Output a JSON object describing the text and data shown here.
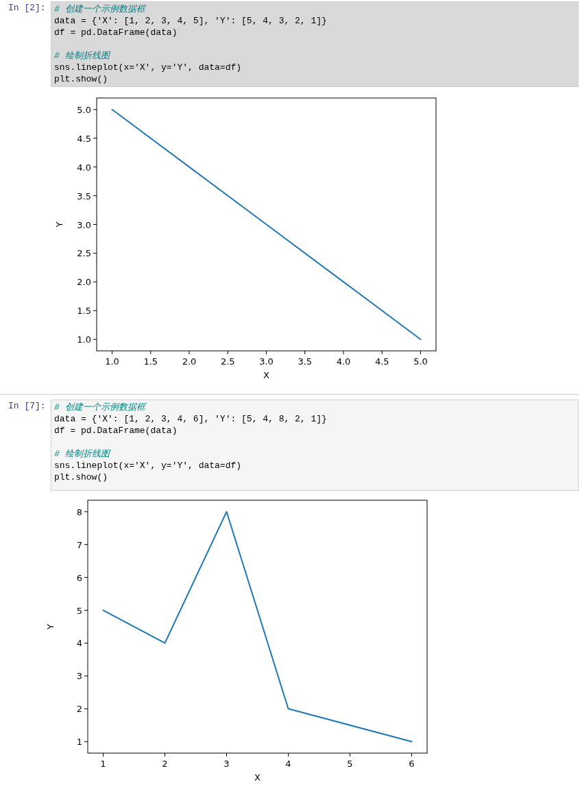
{
  "chart_data": [
    {
      "type": "line",
      "xlabel": "X",
      "ylabel": "Y",
      "color": "#1f77b4",
      "annotations": [
        "In [2]:",
        "# 创建一个示例数据框",
        "data = {'X': [1, 2, 3, 4, 5], 'Y': [5, 4, 3, 2, 1]}",
        "df = pd.DataFrame(data)",
        "# 绘制折线图",
        "sns.lineplot(x='X', y='Y', data=df)",
        "plt.show()"
      ],
      "x": [
        1,
        2,
        3,
        4,
        5
      ],
      "values": [
        5,
        4,
        3,
        2,
        1
      ],
      "xlim": [
        0.8,
        5.2
      ],
      "ylim": [
        0.8,
        5.2
      ],
      "xticks": [
        {
          "value": 1,
          "label": "1.0"
        },
        {
          "value": 1.5,
          "label": "1.5"
        },
        {
          "value": 2,
          "label": "2.0"
        },
        {
          "value": 2.5,
          "label": "2.5"
        },
        {
          "value": 3,
          "label": "3.0"
        },
        {
          "value": 3.5,
          "label": "3.5"
        },
        {
          "value": 4,
          "label": "4.0"
        },
        {
          "value": 4.5,
          "label": "4.5"
        },
        {
          "value": 5,
          "label": "5.0"
        }
      ],
      "yticks": [
        {
          "value": 1,
          "label": "1.0"
        },
        {
          "value": 1.5,
          "label": "1.5"
        },
        {
          "value": 2,
          "label": "2.0"
        },
        {
          "value": 2.5,
          "label": "2.5"
        },
        {
          "value": 3,
          "label": "3.0"
        },
        {
          "value": 3.5,
          "label": "3.5"
        },
        {
          "value": 4,
          "label": "4.0"
        },
        {
          "value": 4.5,
          "label": "4.5"
        },
        {
          "value": 5,
          "label": "5.0"
        }
      ],
      "grid": false
    },
    {
      "type": "line",
      "xlabel": "X",
      "ylabel": "Y",
      "color": "#1f77b4",
      "annotations": [
        "In [7]:",
        "# 创建一个示例数据框",
        "data = {'X': [1, 2, 3, 4, 6], 'Y': [5, 4, 8, 2, 1]}",
        "df = pd.DataFrame(data)",
        "# 绘制折线图",
        "sns.lineplot(x='X', y='Y', data=df)",
        "plt.show()"
      ],
      "x": [
        1,
        2,
        3,
        4,
        6
      ],
      "values": [
        5,
        4,
        8,
        2,
        1
      ],
      "xlim": [
        0.75,
        6.25
      ],
      "ylim": [
        0.65,
        8.35
      ],
      "xticks": [
        1,
        2,
        3,
        4,
        5,
        6
      ],
      "yticks": [
        1,
        2,
        3,
        4,
        5,
        6,
        7,
        8
      ],
      "grid": false
    }
  ]
}
